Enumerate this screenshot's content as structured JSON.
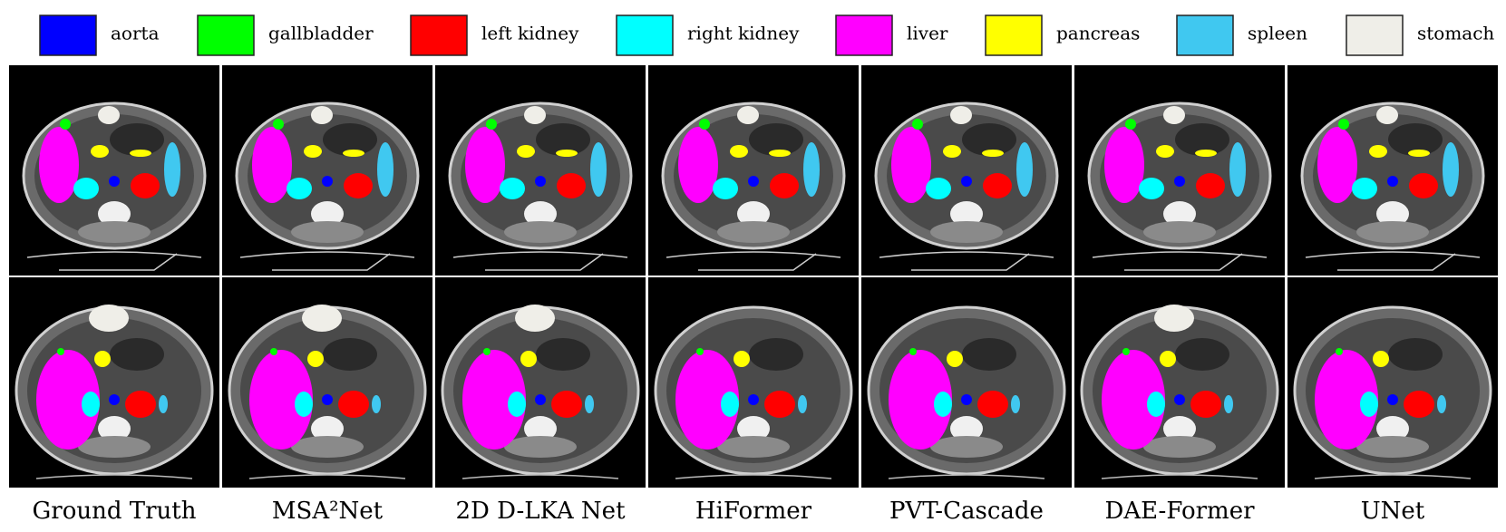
{
  "legend": [
    {
      "label": "aorta",
      "color": "#0000ff"
    },
    {
      "label": "gallbladder",
      "color": "#00ff00"
    },
    {
      "label": "left kidney",
      "color": "#ff0000"
    },
    {
      "label": "right kidney",
      "color": "#00ffff"
    },
    {
      "label": "liver",
      "color": "#ff00ff"
    },
    {
      "label": "pancreas",
      "color": "#ffff00"
    },
    {
      "label": "spleen",
      "color": "#40c8f0"
    },
    {
      "label": "stomach",
      "color": "#efeee8"
    }
  ],
  "columns": [
    "Ground Truth",
    "MSA²Net",
    "2D D-LKA Net",
    "HiFormer",
    "PVT-Cascade",
    "DAE-Former",
    "UNet"
  ]
}
